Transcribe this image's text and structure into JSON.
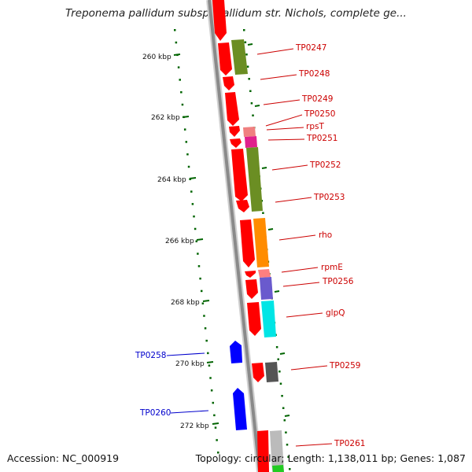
{
  "title": "Treponema pallidum subsp. pallidum str. Nichols, complete ge...",
  "footer": {
    "accession": "Accession: NC_000919",
    "summary": "Topology: circular; Length: 1,138,011 bp; Genes: 1,087"
  },
  "ruler_labels": [
    "260 kbp",
    "262 kbp",
    "264 kbp",
    "266 kbp",
    "268 kbp",
    "270 kbp",
    "272 kbp"
  ],
  "gene_labels_forward": [
    "TP0247",
    "TP0248",
    "TP0249",
    "TP0250",
    "rpsT",
    "TP0251",
    "TP0252",
    "TP0253",
    "rho",
    "rpmE",
    "TP0256",
    "glpQ",
    "TP0259",
    "TP0261"
  ],
  "gene_labels_reverse": [
    "TP0258",
    "TP0260"
  ],
  "colors": {
    "backbone": "#8a8a8a",
    "forward_cds": "#ff0000",
    "reverse_cds": "#0000ff",
    "ruler_ticks": "#006400",
    "label_forward": "#cc0000",
    "label_reverse": "#0000cc",
    "cog_olive": "#6b8e23",
    "cog_pink": "#f08080",
    "cog_magenta": "#e0208c",
    "cog_orange": "#ff8c00",
    "cog_salmon": "#ff7f7f",
    "cog_purple": "#6a5acd",
    "cog_cyan": "#00e5e5",
    "cog_gray": "#555555",
    "cog_lightgray": "#bbbbbb",
    "cog_green": "#22cc22"
  }
}
